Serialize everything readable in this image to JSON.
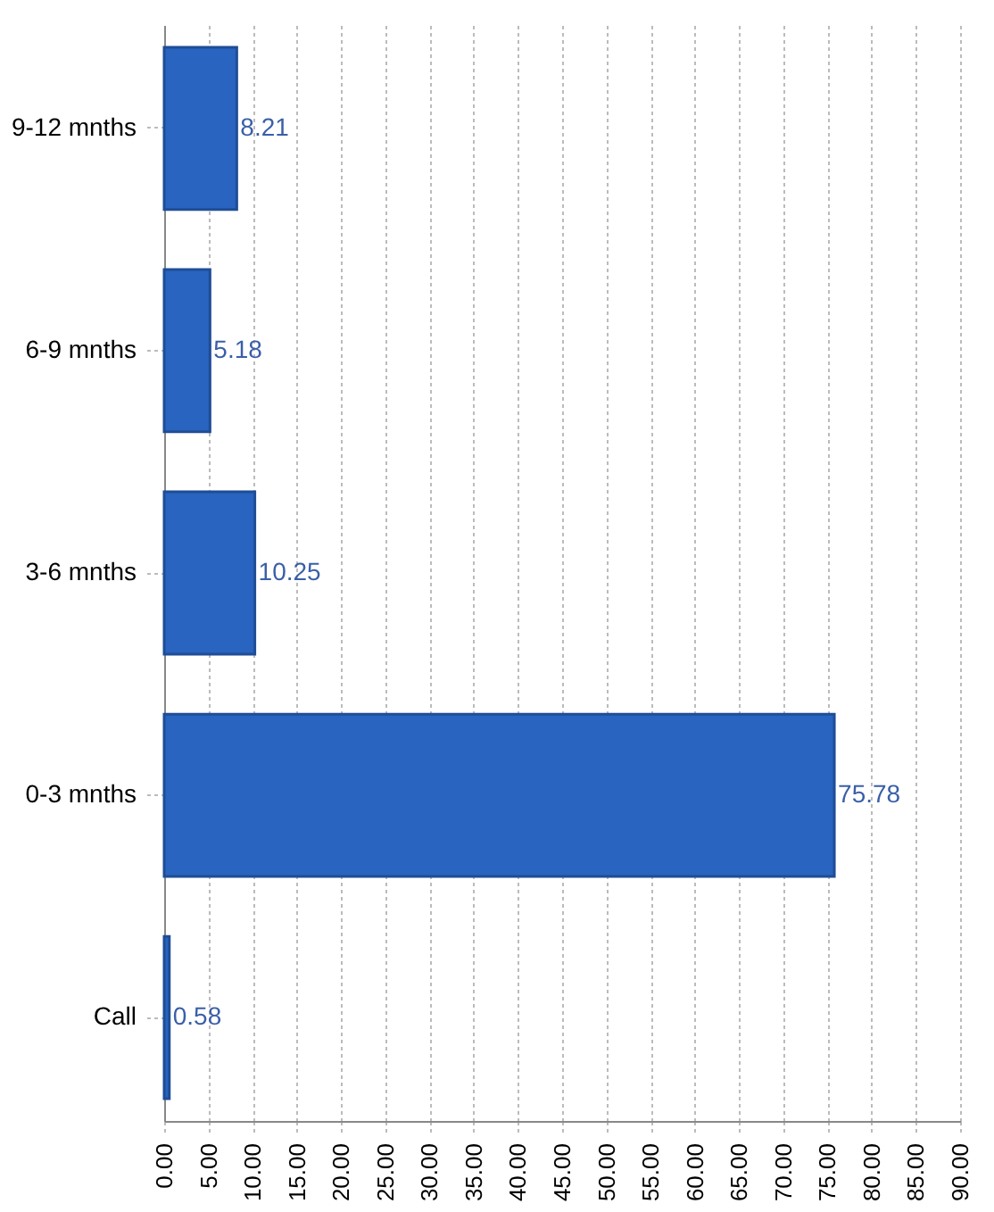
{
  "chart_data": {
    "type": "bar",
    "orientation": "horizontal",
    "categories": [
      "9-12 mnths",
      "6-9 mnths",
      "3-6 mnths",
      "0-3 mnths",
      "Call"
    ],
    "values": [
      8.21,
      5.18,
      10.25,
      75.78,
      0.58
    ],
    "color": "#2864c0",
    "data_labels": true,
    "grid": "x",
    "xlim": [
      0,
      90
    ],
    "xticks": [
      {
        "value": 0,
        "label": "0.00"
      },
      {
        "value": 5,
        "label": "5.00"
      },
      {
        "value": 10,
        "label": "10.00"
      },
      {
        "value": 15,
        "label": "15.00"
      },
      {
        "value": 20,
        "label": "20.00"
      },
      {
        "value": 25,
        "label": "25.00"
      },
      {
        "value": 30,
        "label": "30.00"
      },
      {
        "value": 35,
        "label": "35.00"
      },
      {
        "value": 40,
        "label": "40.00"
      },
      {
        "value": 45,
        "label": "45.00"
      },
      {
        "value": 50,
        "label": "50.00"
      },
      {
        "value": 55,
        "label": "55.00"
      },
      {
        "value": 60,
        "label": "60.00"
      },
      {
        "value": 65,
        "label": "65.00"
      },
      {
        "value": 70,
        "label": "70.00"
      },
      {
        "value": 75,
        "label": "75.00"
      },
      {
        "value": 80,
        "label": "80.00"
      },
      {
        "value": 85,
        "label": "85.00"
      },
      {
        "value": 90,
        "label": "90.00"
      }
    ]
  }
}
